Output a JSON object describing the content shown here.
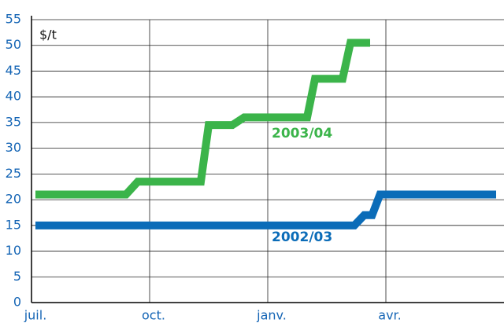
{
  "chart_data": {
    "type": "line",
    "y_label": "$/t",
    "xlim": [
      0,
      12
    ],
    "xticks": [
      {
        "value": 0,
        "label": "juil."
      },
      {
        "value": 3,
        "label": "oct."
      },
      {
        "value": 6,
        "label": "janv."
      },
      {
        "value": 9,
        "label": "avr."
      }
    ],
    "ylim": [
      0,
      55
    ],
    "yticks": [
      0,
      5,
      10,
      15,
      20,
      25,
      30,
      35,
      40,
      45,
      50,
      55
    ],
    "grid": true,
    "series": [
      {
        "name": "2003/04",
        "color": "#3bb44a",
        "x": [
          0.1,
          2.4,
          2.7,
          4.3,
          4.5,
          5.1,
          5.4,
          7.0,
          7.2,
          7.9,
          8.1,
          8.6
        ],
        "values": [
          21,
          21,
          23.5,
          23.5,
          34.5,
          34.5,
          36,
          36,
          43.5,
          43.5,
          50.5,
          50.5
        ]
      },
      {
        "name": "2002/03",
        "color": "#0b6cb8",
        "x": [
          0.1,
          8.2,
          8.45,
          8.65,
          8.85,
          11.8
        ],
        "values": [
          15,
          15,
          17,
          17,
          21,
          21
        ]
      }
    ]
  }
}
